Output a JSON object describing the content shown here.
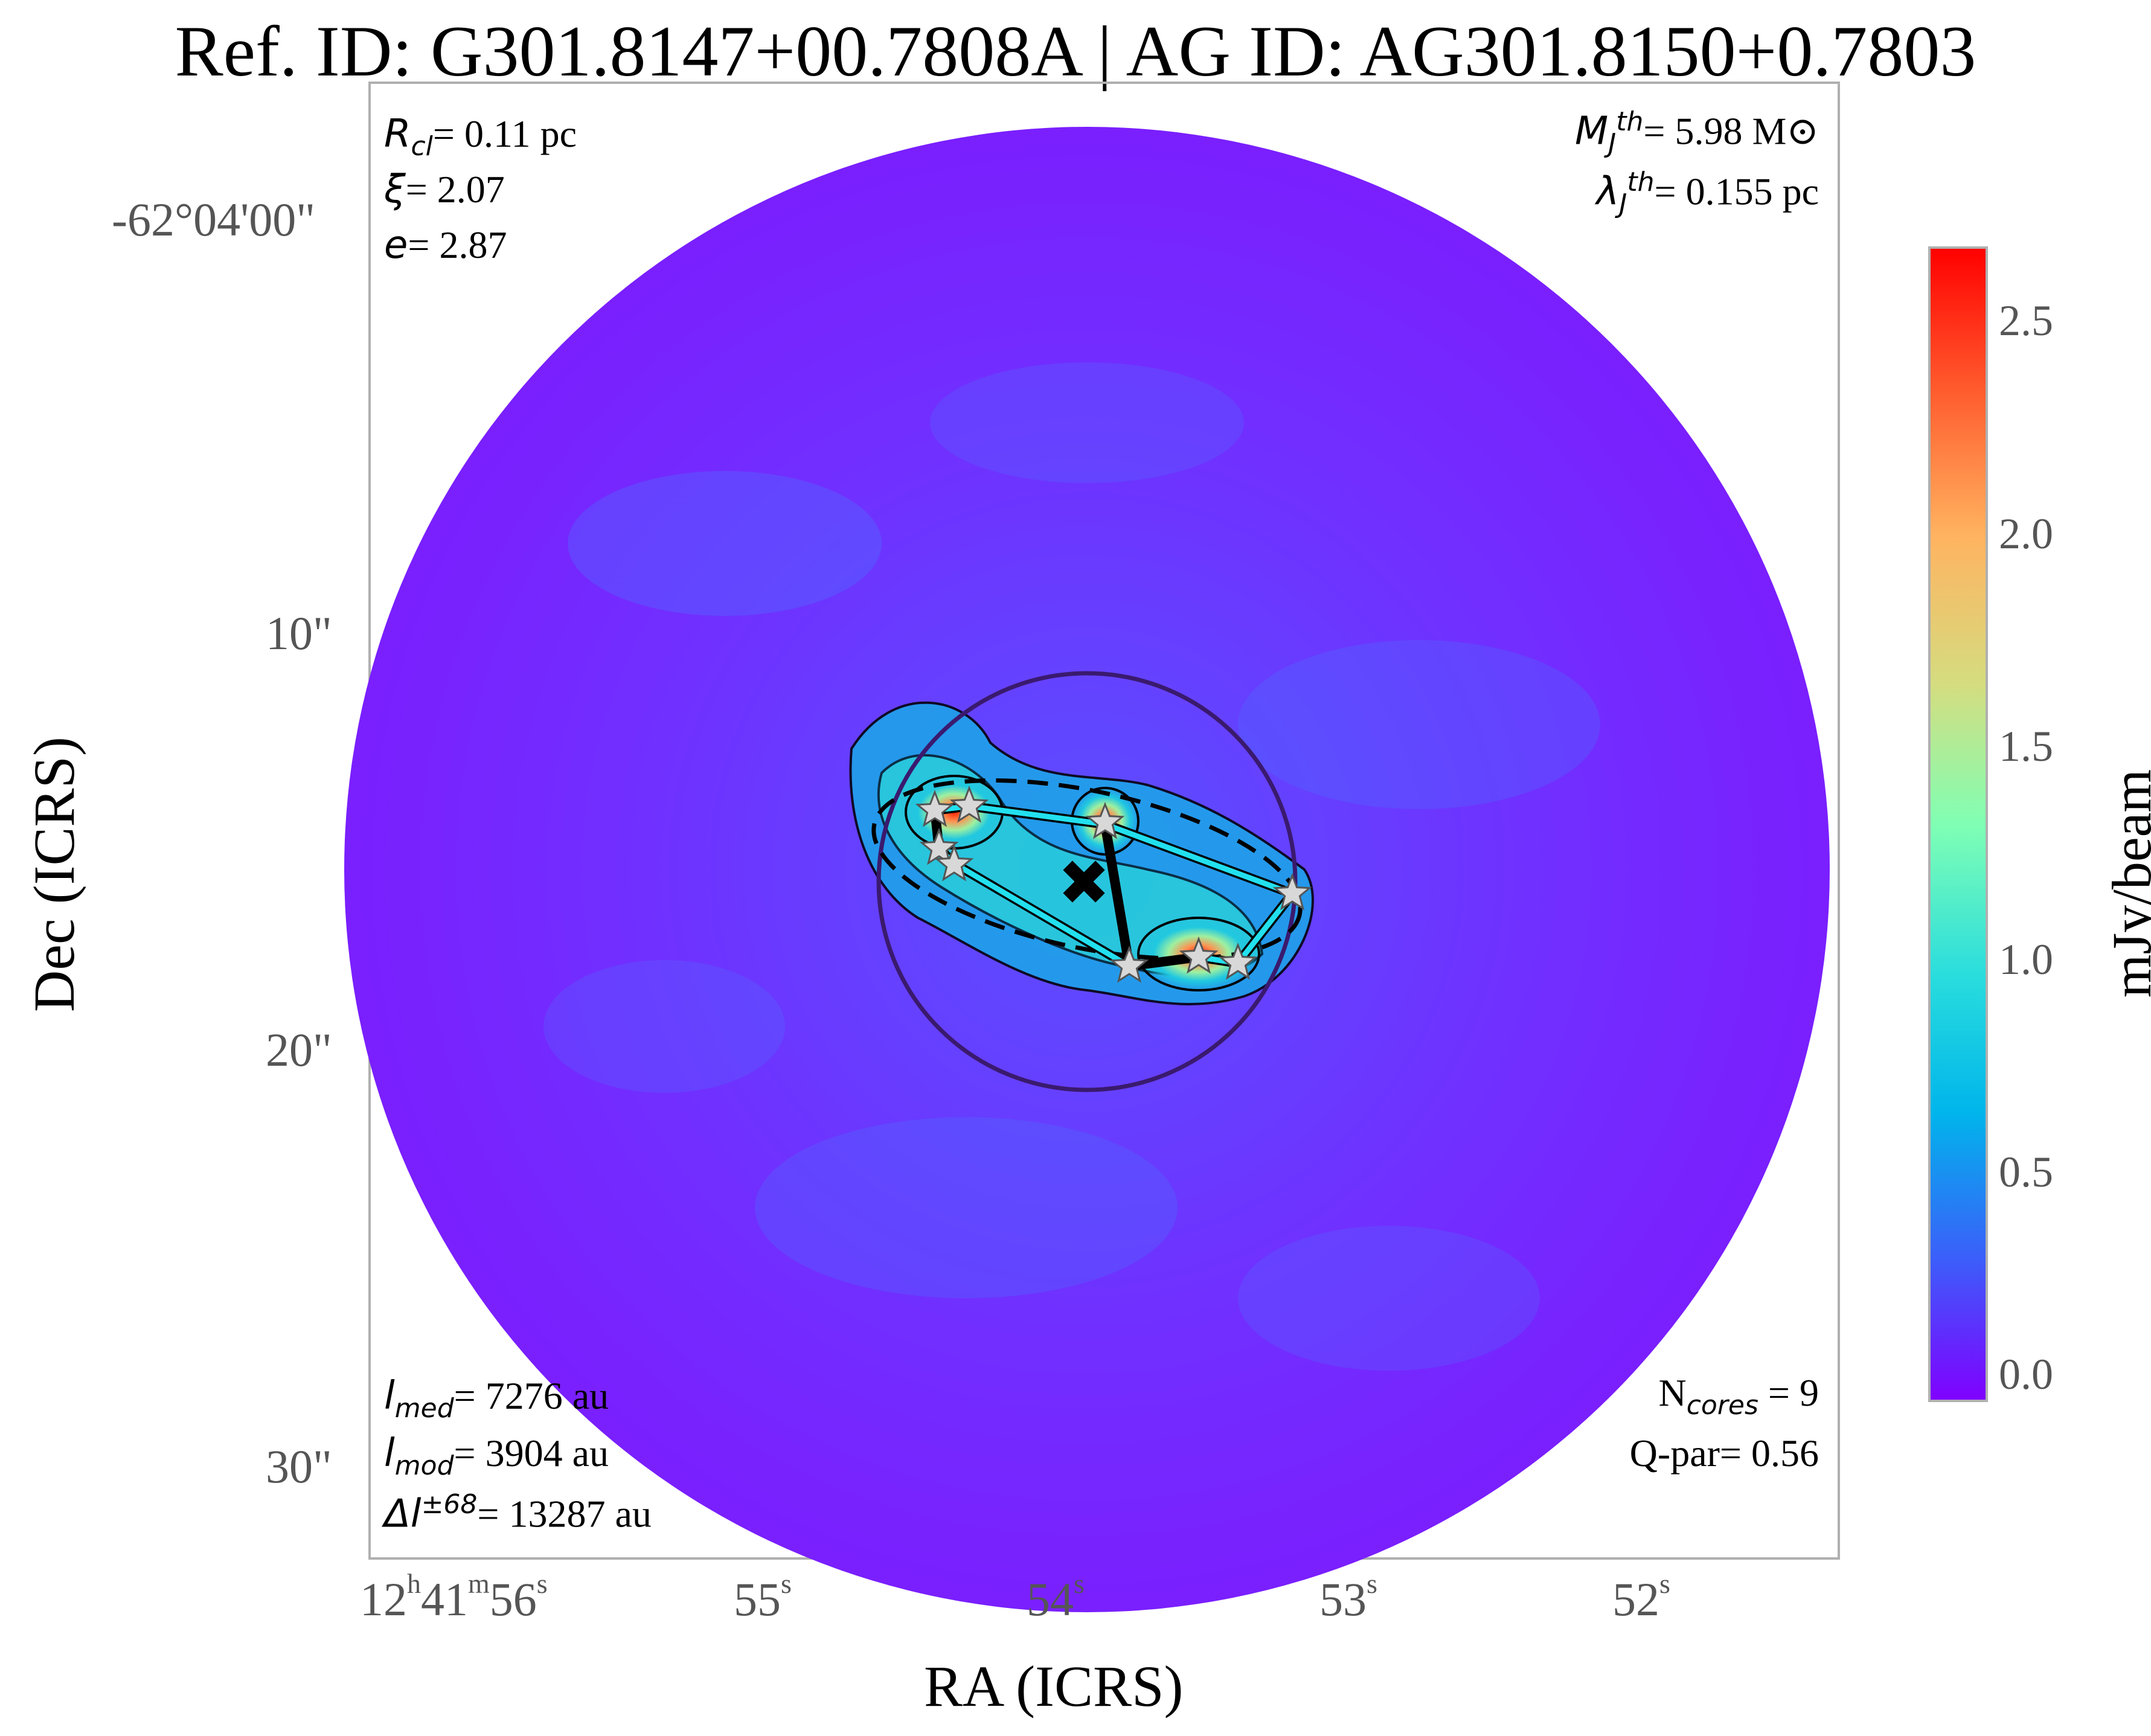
{
  "title": "Ref. ID: G301.8147+00.7808A | AG ID: AG301.8150+0.7803",
  "axes": {
    "xlabel": "RA (ICRS)",
    "ylabel": "Dec (ICRS)",
    "x_ticks": [
      {
        "h": "12",
        "m": "41",
        "s": "56"
      },
      {
        "s": "55"
      },
      {
        "s": "54"
      },
      {
        "s": "53"
      },
      {
        "s": "52"
      }
    ],
    "y_ticks": [
      "-62°04'00\"",
      "10\"",
      "20\"",
      "30\""
    ]
  },
  "annotations": {
    "top_left": [
      {
        "sym": "R",
        "sub": "cl",
        "text": "= 0.11 pc"
      },
      {
        "sym": "ξ",
        "sub": "",
        "text": "= 2.07"
      },
      {
        "sym": "e",
        "sub": "",
        "text": "= 2.87"
      }
    ],
    "top_right": [
      {
        "sym": "M",
        "sub": "J",
        "sup": "th",
        "text": "= 5.98 M⊙"
      },
      {
        "sym": "λ",
        "sub": "J",
        "sup": "th",
        "text": "= 0.155 pc"
      }
    ],
    "bottom_left": [
      {
        "sym": "l",
        "sub": "med",
        "text": "= 7276 au"
      },
      {
        "sym": "l",
        "sub": "mod",
        "text": "= 3904 au"
      },
      {
        "sym": "Δl",
        "sup": "±68",
        "text": "= 13287 au"
      }
    ],
    "bottom_right": [
      {
        "pre": "N",
        "sub": "cores",
        "text": " = 9"
      },
      {
        "pre": "Q-par",
        "text": "= 0.56"
      }
    ]
  },
  "colorbar": {
    "label": "mJy/beam",
    "ticks": [
      "2.5",
      "2.0",
      "1.5",
      "1.0",
      "0.5",
      "0.0"
    ],
    "colormap": [
      "#8000ff",
      "#2c7ef7",
      "#00b5eb",
      "#2adddd",
      "#80ffb4",
      "#d4dd80",
      "#ffb360",
      "#ff6030",
      "#ff0000"
    ]
  },
  "colors": {
    "background_emission": "#7a1ffe",
    "core_markers": "#d8d8d8",
    "mst_edges": "#22e0ee",
    "cluster_circle": "#3a1a6e",
    "frame": "#b0b0b0"
  }
}
